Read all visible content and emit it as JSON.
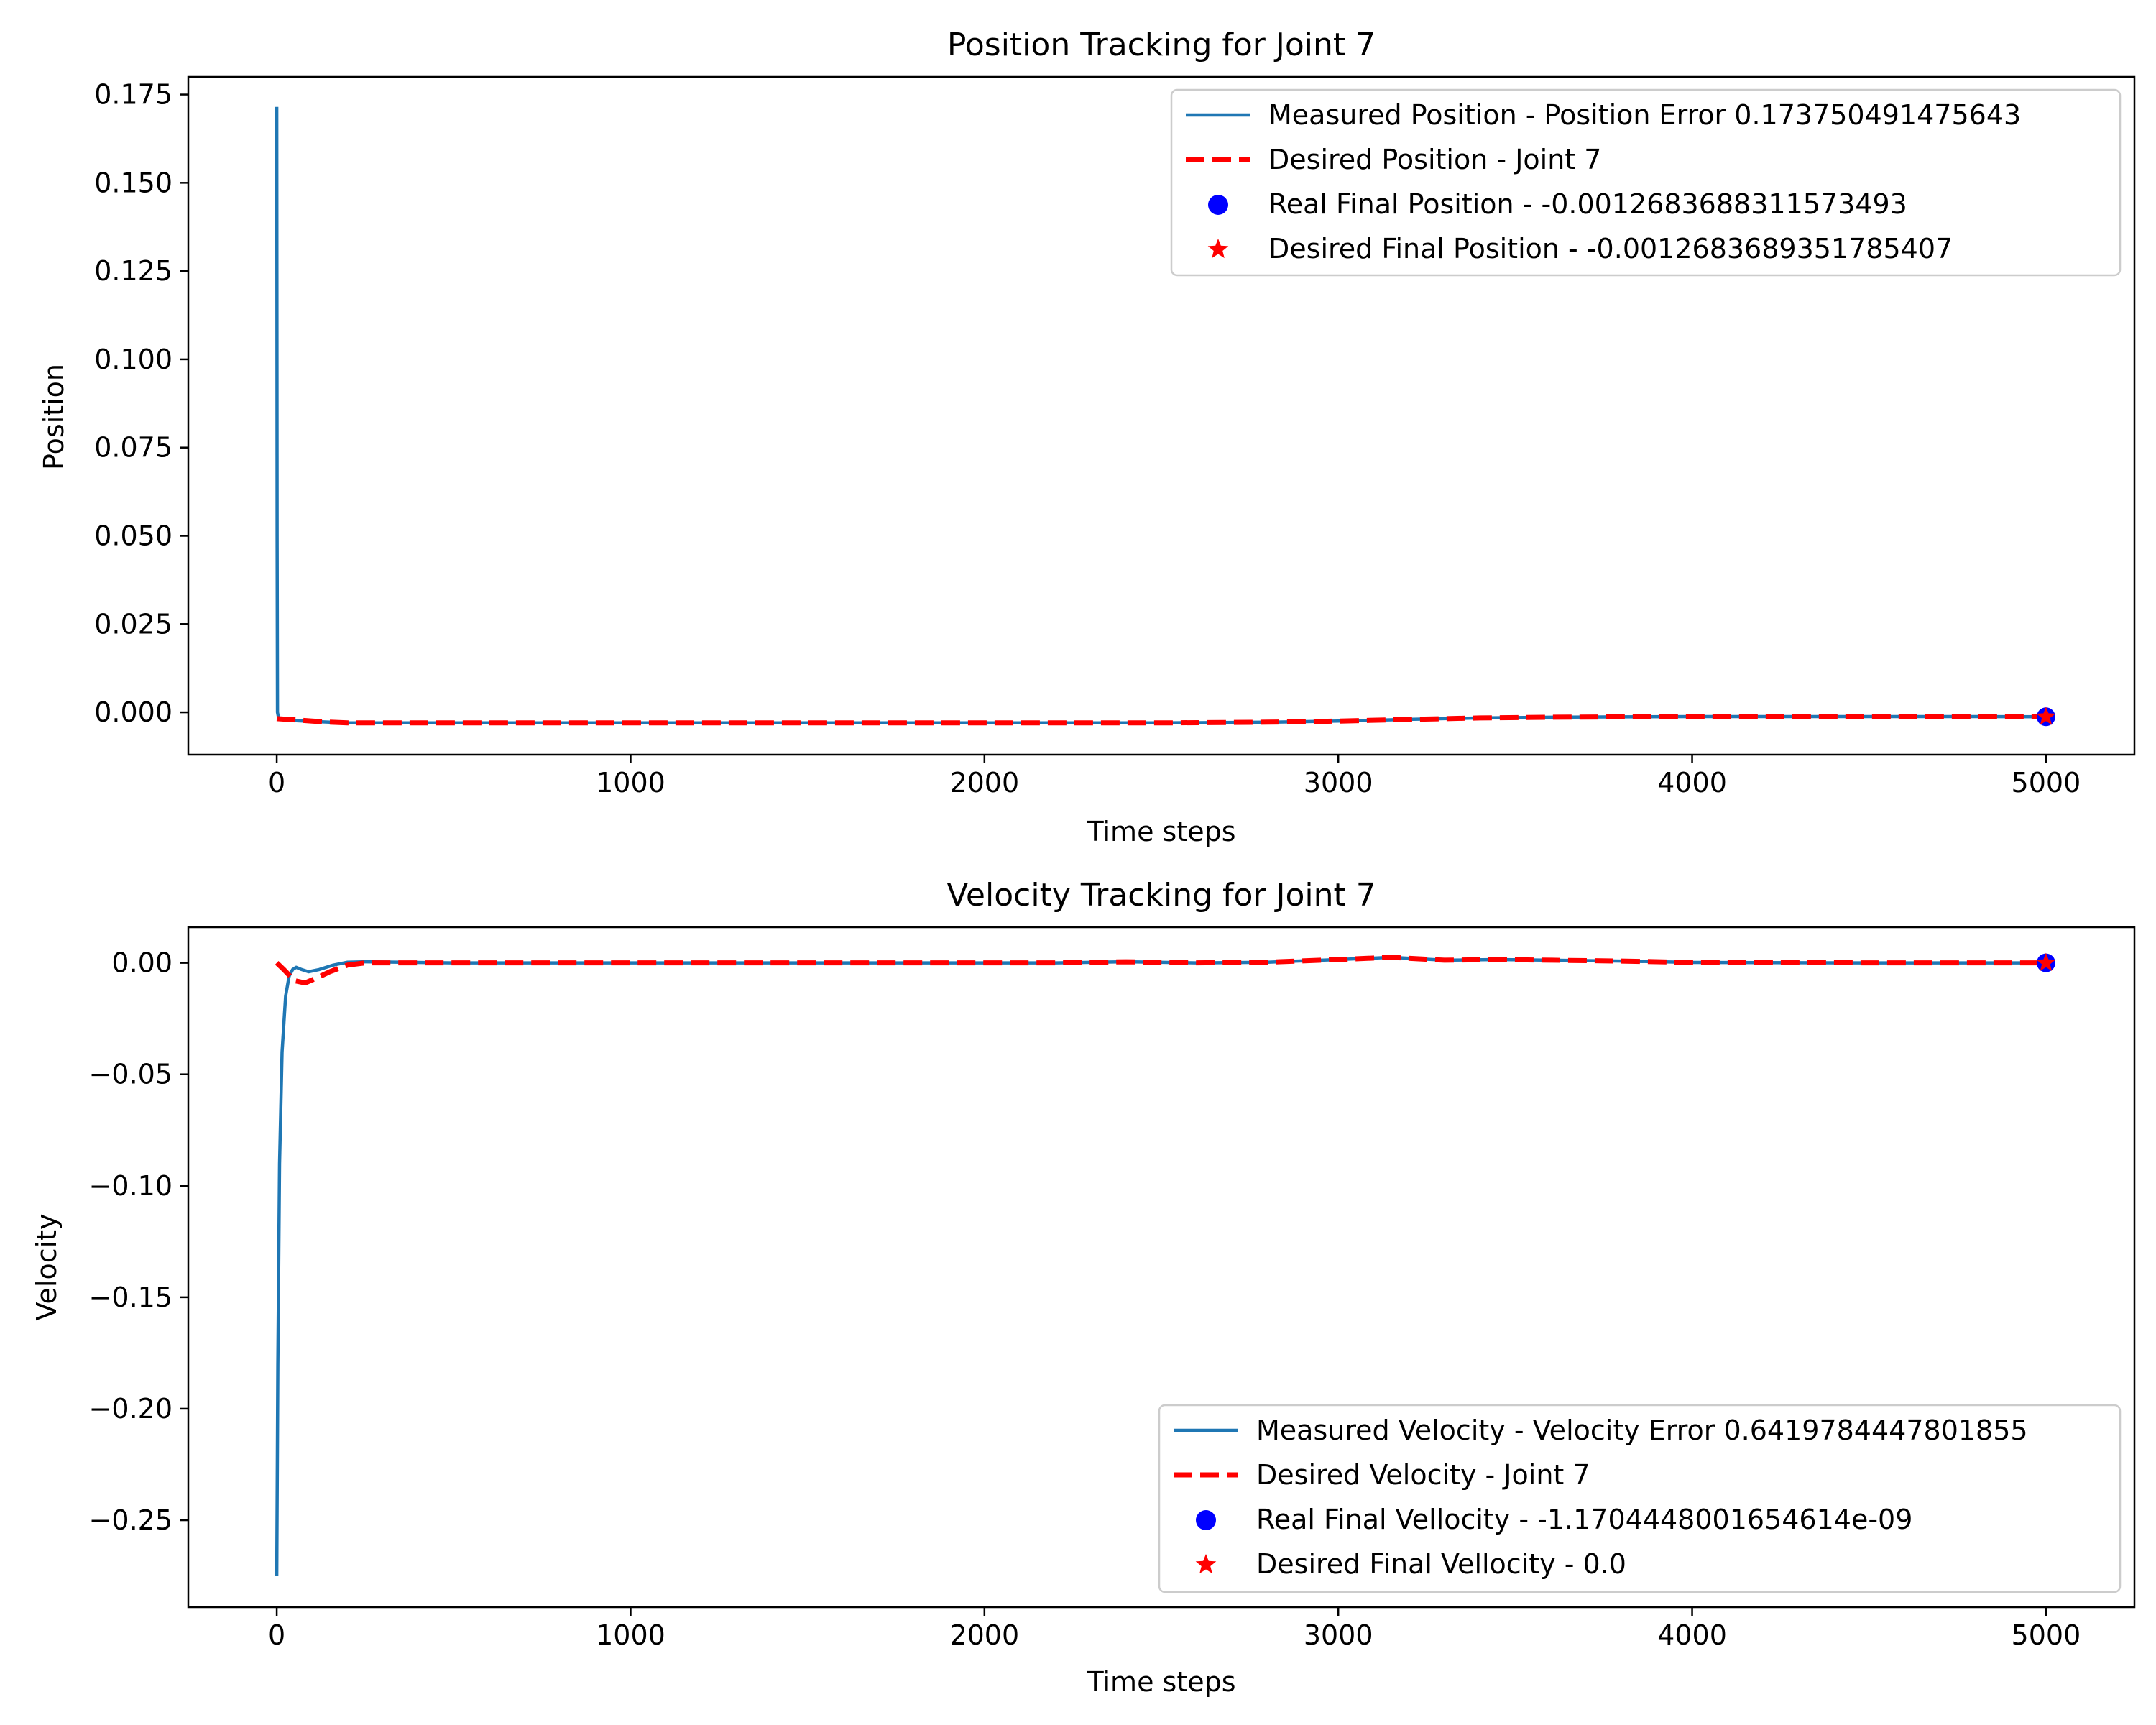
{
  "chart_data": [
    {
      "type": "line",
      "title": "Position Tracking for Joint 7",
      "xlabel": "Time steps",
      "ylabel": "Position",
      "xlim": [
        -250,
        5250
      ],
      "ylim": [
        -0.012,
        0.18
      ],
      "xticks": [
        0,
        1000,
        2000,
        3000,
        4000,
        5000
      ],
      "xtick_labels": [
        "0",
        "1000",
        "2000",
        "3000",
        "4000",
        "5000"
      ],
      "yticks": [
        0.0,
        0.025,
        0.05,
        0.075,
        0.1,
        0.125,
        0.15,
        0.175
      ],
      "ytick_labels": [
        "0.000",
        "0.025",
        "0.050",
        "0.075",
        "0.100",
        "0.125",
        "0.150",
        "0.175"
      ],
      "grid": false,
      "legend_position": "top-right",
      "series": [
        {
          "name": "Measured Position - Position Error 0.173750491475643",
          "style": "solid",
          "color": "#1f77b4",
          "x": [
            0,
            1,
            2,
            5,
            10,
            30,
            60,
            100,
            150,
            200,
            300,
            500,
            1000,
            1500,
            2000,
            2500,
            2800,
            3000,
            3200,
            3400,
            3600,
            3800,
            4000,
            4200,
            4400,
            4600,
            4800,
            5000
          ],
          "y": [
            0.1715,
            0.05,
            0.0,
            -0.0015,
            -0.002,
            -0.0022,
            -0.0024,
            -0.0026,
            -0.0028,
            -0.003,
            -0.003,
            -0.003,
            -0.003,
            -0.003,
            -0.003,
            -0.003,
            -0.0028,
            -0.0025,
            -0.002,
            -0.0016,
            -0.0014,
            -0.0013,
            -0.0012,
            -0.0012,
            -0.0012,
            -0.0012,
            -0.0012,
            -0.00127
          ]
        },
        {
          "name": "Desired Position - Joint 7",
          "style": "dashed",
          "color": "#ff0000",
          "x": [
            0,
            30,
            60,
            100,
            150,
            200,
            300,
            500,
            1000,
            1500,
            2000,
            2500,
            2800,
            3000,
            3200,
            3400,
            3600,
            3800,
            4000,
            4200,
            4400,
            4600,
            4800,
            5000
          ],
          "y": [
            -0.0018,
            -0.002,
            -0.0022,
            -0.0025,
            -0.0028,
            -0.003,
            -0.003,
            -0.003,
            -0.003,
            -0.003,
            -0.003,
            -0.003,
            -0.0028,
            -0.0025,
            -0.002,
            -0.0016,
            -0.0014,
            -0.0013,
            -0.0012,
            -0.0012,
            -0.0012,
            -0.0012,
            -0.0012,
            -0.00127
          ]
        }
      ],
      "points": [
        {
          "name": "Real Final Position - -0.0012683688311573493",
          "marker": "circle",
          "color": "#0000ff",
          "x": 5000,
          "y": -0.0012683688311573493
        },
        {
          "name": "Desired Final Position - -0.0012683689351785407",
          "marker": "star",
          "color": "#ff0000",
          "x": 5000,
          "y": -0.0012683689351785407
        }
      ]
    },
    {
      "type": "line",
      "title": "Velocity Tracking for Joint 7",
      "xlabel": "Time steps",
      "ylabel": "Velocity",
      "xlim": [
        -250,
        5250
      ],
      "ylim": [
        -0.289,
        0.016
      ],
      "xticks": [
        0,
        1000,
        2000,
        3000,
        4000,
        5000
      ],
      "xtick_labels": [
        "0",
        "1000",
        "2000",
        "3000",
        "4000",
        "5000"
      ],
      "yticks": [
        0.0,
        -0.05,
        -0.1,
        -0.15,
        -0.2,
        -0.25
      ],
      "ytick_labels": [
        "0.00",
        "−0.05",
        "−0.10",
        "−0.15",
        "−0.20",
        "−0.25"
      ],
      "grid": false,
      "legend_position": "bottom-right",
      "series": [
        {
          "name": "Measured Velocity - Velocity Error 0.6419784447801855",
          "style": "solid",
          "color": "#1f77b4",
          "x": [
            0,
            3,
            8,
            15,
            25,
            35,
            45,
            55,
            70,
            90,
            120,
            160,
            200,
            250,
            500,
            1000,
            1500,
            2000,
            2200,
            2400,
            2600,
            2800,
            3000,
            3150,
            3300,
            3450,
            3600,
            3800,
            4000,
            4500,
            5000
          ],
          "y": [
            -0.275,
            -0.18,
            -0.09,
            -0.04,
            -0.015,
            -0.006,
            -0.003,
            -0.002,
            -0.003,
            -0.004,
            -0.003,
            -0.001,
            0.0003,
            0.0005,
            0.0,
            0.0,
            0.0,
            0.0,
            0.0,
            0.0005,
            0.0,
            0.0003,
            0.0015,
            0.0025,
            0.0012,
            0.0015,
            0.0012,
            0.0008,
            0.0002,
            0.0,
            0.0
          ]
        },
        {
          "name": "Desired Velocity - Joint 7",
          "style": "dashed",
          "color": "#ff0000",
          "x": [
            0,
            20,
            50,
            80,
            110,
            150,
            200,
            250,
            500,
            1000,
            1500,
            2000,
            2200,
            2400,
            2600,
            2800,
            3000,
            3150,
            3300,
            3450,
            3600,
            3800,
            4000,
            4500,
            5000
          ],
          "y": [
            0.0,
            -0.003,
            -0.008,
            -0.009,
            -0.007,
            -0.004,
            -0.001,
            0.0,
            0.0,
            0.0,
            0.0,
            0.0,
            0.0,
            0.0005,
            0.0,
            0.0003,
            0.0015,
            0.0025,
            0.0012,
            0.0015,
            0.0012,
            0.0008,
            0.0002,
            0.0,
            0.0
          ]
        }
      ],
      "points": [
        {
          "name": "Real Final Vellocity - -1.1704448001654614e-09",
          "marker": "circle",
          "color": "#0000ff",
          "x": 5000,
          "y": -1.1704448001654614e-09
        },
        {
          "name": "Desired Final Vellocity - 0.0",
          "marker": "star",
          "color": "#ff0000",
          "x": 5000,
          "y": 0.0
        }
      ]
    }
  ]
}
